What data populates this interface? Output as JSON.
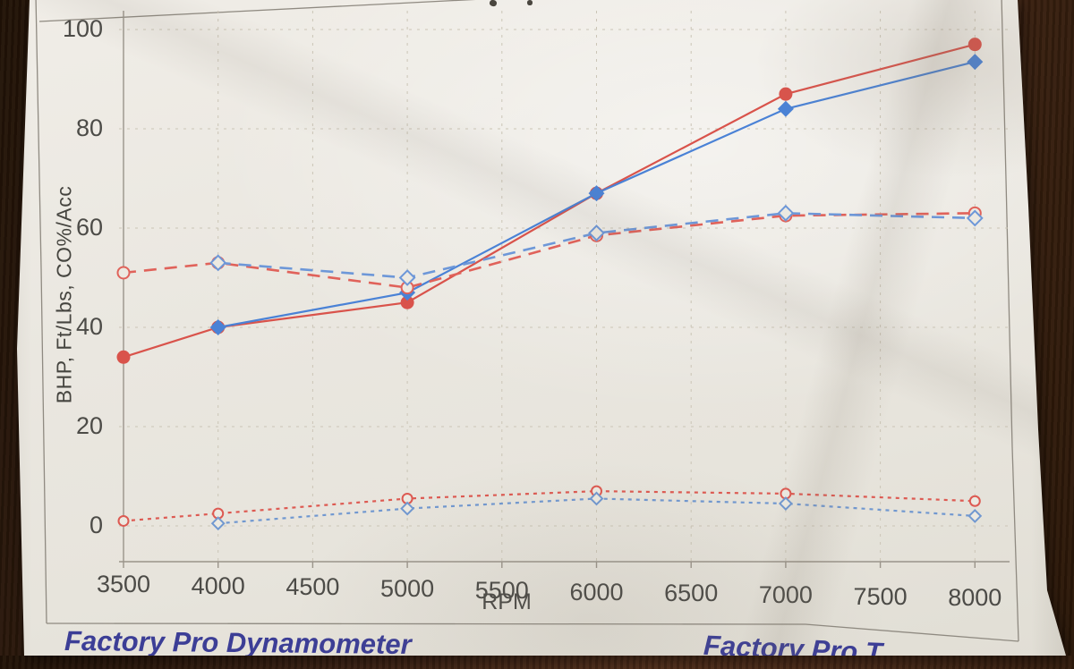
{
  "scene": {
    "description": "photograph of a printed dynamometer chart lying on a dark wood table",
    "paper_color": "#eae7e0",
    "wood_color": "#3a2113",
    "accent_red": "#d9534b",
    "accent_blue": "#4a82d6",
    "brand_text_color": "#3c3e96"
  },
  "chart_data": {
    "type": "line",
    "title": "",
    "xlabel": "RPM",
    "ylabel": "BHP, Ft/Lbs, CO%/Acc",
    "x_ticks": [
      3500,
      4000,
      4500,
      5000,
      5500,
      6000,
      6500,
      7000,
      7500,
      8000
    ],
    "y_ticks": [
      0,
      20,
      40,
      60,
      80,
      100
    ],
    "xlim": [
      3450,
      8200
    ],
    "ylim": [
      -7,
      104
    ],
    "grid": true,
    "legend": "none",
    "series": [
      {
        "name": "bhp-run-red",
        "style": "solid",
        "marker": "filled-circle",
        "color": "#d9534b",
        "x": [
          3500,
          4000,
          5000,
          6000,
          7000,
          8000
        ],
        "y": [
          34,
          40,
          45,
          67,
          87,
          97
        ]
      },
      {
        "name": "bhp-run-blue",
        "style": "solid",
        "marker": "filled-diamond",
        "color": "#4a82d6",
        "x": [
          4000,
          5000,
          6000,
          7000,
          8000
        ],
        "y": [
          40,
          47,
          67,
          84,
          93.5
        ]
      },
      {
        "name": "torque-run-red",
        "style": "dashed",
        "marker": "open-circle",
        "color": "#e0625a",
        "x": [
          3500,
          4000,
          5000,
          6000,
          7000,
          8000
        ],
        "y": [
          51,
          53,
          48,
          58.5,
          62.5,
          63
        ]
      },
      {
        "name": "torque-run-blue",
        "style": "dashed",
        "marker": "open-diamond",
        "color": "#6d97d8",
        "x": [
          4000,
          5000,
          6000,
          7000,
          8000
        ],
        "y": [
          53,
          50,
          59,
          63,
          62
        ]
      },
      {
        "name": "co-run-red",
        "style": "dotted",
        "marker": "open-circle",
        "color": "#dd5a52",
        "x": [
          3500,
          4000,
          5000,
          6000,
          7000,
          8000
        ],
        "y": [
          1,
          2.5,
          5.5,
          7,
          6.5,
          5
        ]
      },
      {
        "name": "co-run-blue",
        "style": "dotted",
        "marker": "open-diamond",
        "color": "#7198d0",
        "x": [
          4000,
          5000,
          6000,
          7000,
          8000
        ],
        "y": [
          0.5,
          3.5,
          5.5,
          4.5,
          2
        ]
      }
    ]
  },
  "footer": {
    "left_title": "Factory Pro Dynamometer",
    "right_title": "Factory Pro T"
  }
}
